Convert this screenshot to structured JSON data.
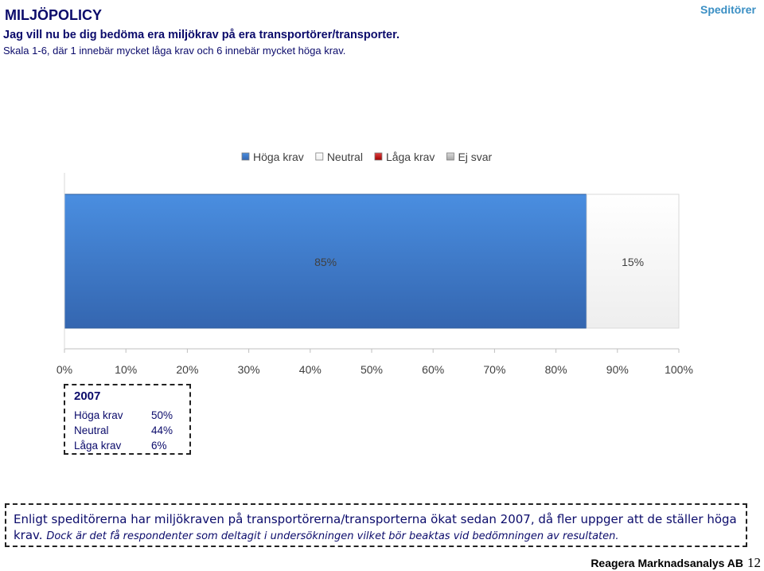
{
  "header": {
    "title": "MILJÖPOLICY",
    "question": "Jag vill nu be dig bedöma era miljökrav på era transportörer/transporter.",
    "scale_note": "Skala 1-6, där 1 innebär mycket låga krav och 6 innebär mycket höga krav.",
    "section": "Speditörer"
  },
  "chart_data": {
    "type": "bar",
    "orientation": "horizontal-stacked-100",
    "categories": [
      ""
    ],
    "series": [
      {
        "name": "Höga krav",
        "values": [
          85
        ],
        "label": "85%",
        "color": "#3f7fd1"
      },
      {
        "name": "Neutral",
        "values": [
          15
        ],
        "label": "15%",
        "color": "#ffffff"
      },
      {
        "name": "Låga krav",
        "values": [
          0
        ],
        "label": "",
        "color": "#c00000"
      },
      {
        "name": "Ej svar",
        "values": [
          0
        ],
        "label": "",
        "color": "#bfbfbf"
      }
    ],
    "xlim": [
      0,
      100
    ],
    "xticks": [
      "0%",
      "10%",
      "20%",
      "30%",
      "40%",
      "50%",
      "60%",
      "70%",
      "80%",
      "90%",
      "100%"
    ],
    "legend_position": "top",
    "grid": false
  },
  "comparison_box": {
    "year": "2007",
    "rows": [
      {
        "label": "Höga krav",
        "value": "50%"
      },
      {
        "label": "Neutral",
        "value": "44%"
      },
      {
        "label": "Låga krav",
        "value": "6%"
      }
    ]
  },
  "summary": {
    "main": "Enligt speditörerna har miljökraven på transportörerna/transporterna ökat sedan 2007, då fler uppger att de ställer höga krav.",
    "note": "Dock är det få respondenter som deltagit i undersökningen vilket bör beaktas vid bedömningen av resultaten."
  },
  "footer": {
    "brand": "Reagera Marknadsanalys AB",
    "page_number": "12"
  }
}
